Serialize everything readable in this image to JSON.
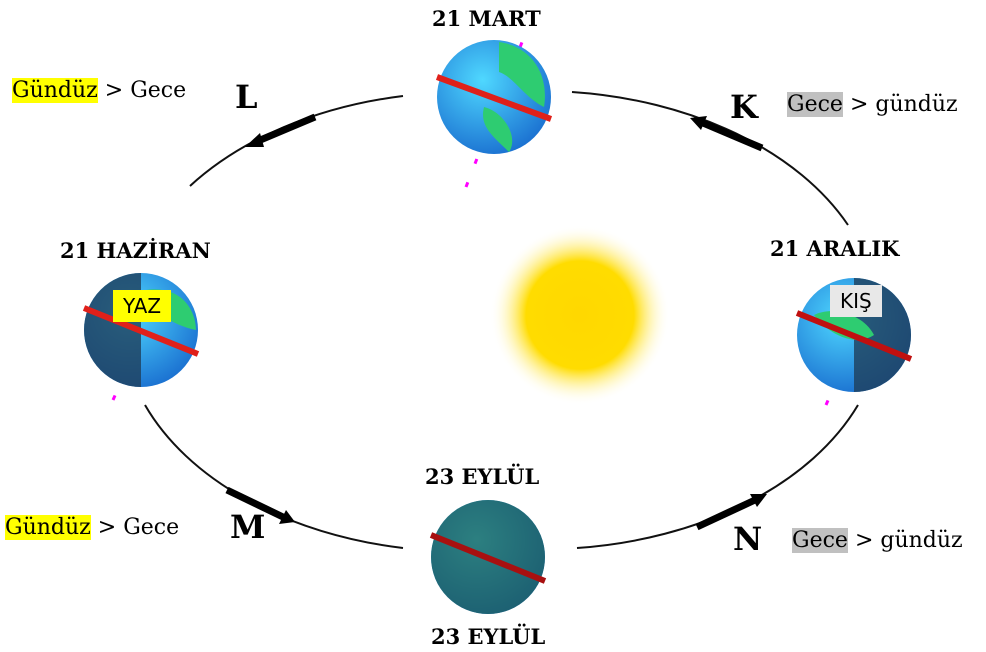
{
  "dates": {
    "top": "21 MART",
    "left": "21 HAZİRAN",
    "right": "21 ARALIK",
    "bottom_top": "23 EYLÜL",
    "bottom_below": "23 EYLÜL"
  },
  "seasons": [
    "YAZ",
    "KIŞ"
  ],
  "quadrants": [
    {
      "letter": "L",
      "highlight": "Gündüz",
      "rest": "> Gece"
    },
    {
      "letter": "K",
      "highlight": "Gece",
      "rest": "> gündüz"
    },
    {
      "letter": "M",
      "highlight": "Gündüz",
      "rest": "> Gece"
    },
    {
      "letter": "N",
      "highlight": "Gece",
      "rest": "> gündüz"
    }
  ]
}
